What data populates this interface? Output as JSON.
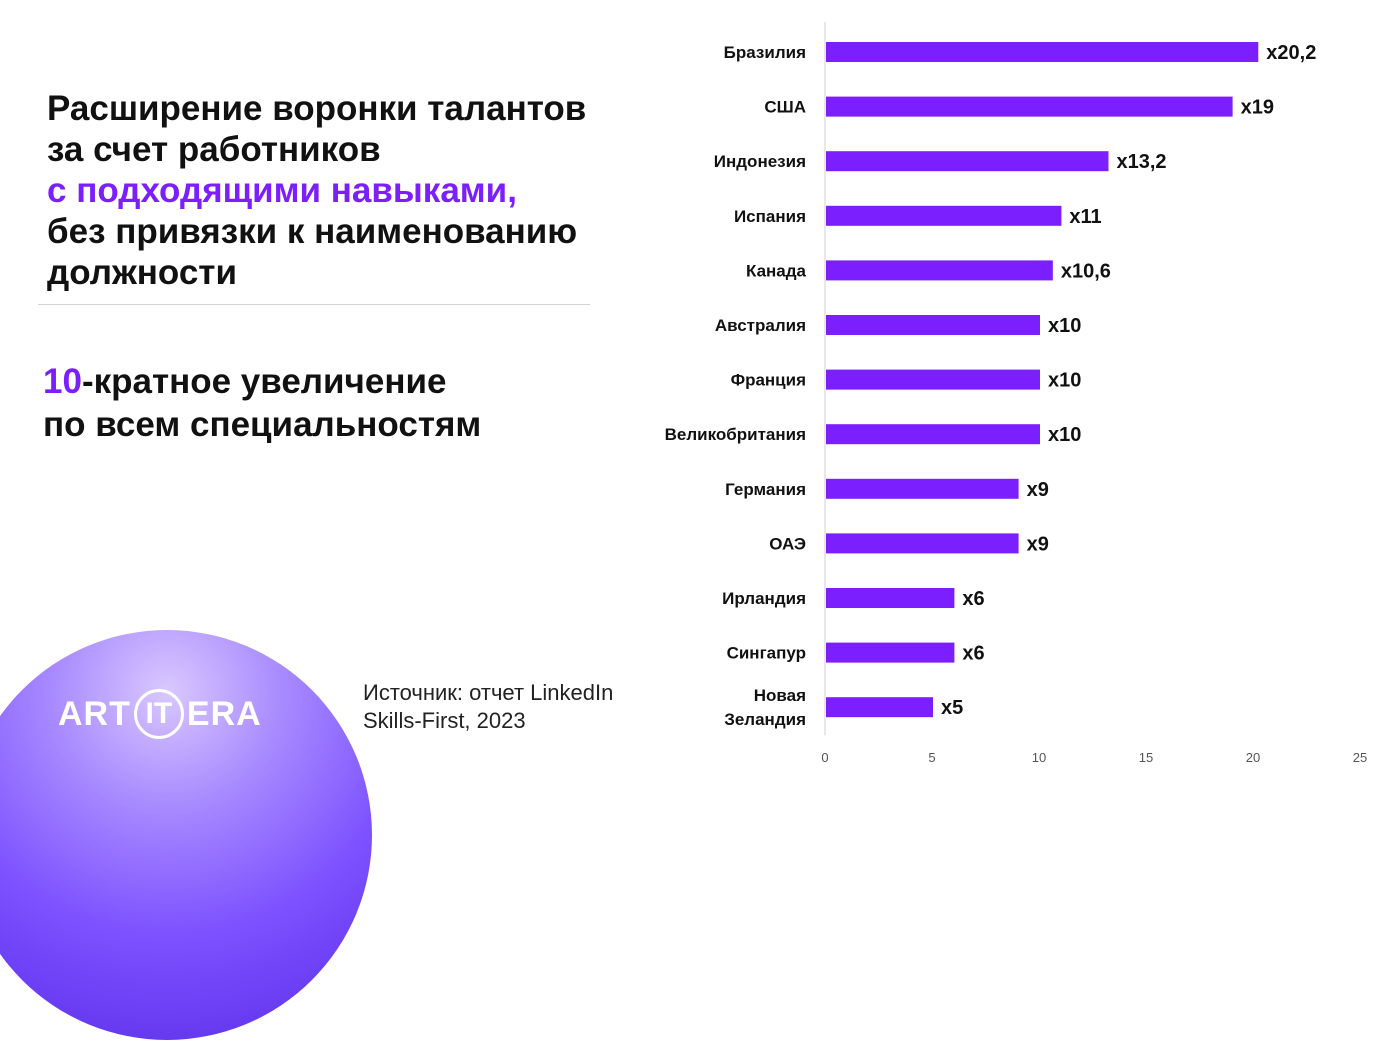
{
  "headline": {
    "line1": "Расширение воронки талантов",
    "line2": "за счет работников",
    "line3_accent": "с подходящими навыками,",
    "line4": "без привязки к наименованию",
    "line5": "должности"
  },
  "stat": {
    "number": "10",
    "line1_rest": "-кратное увеличение",
    "line2": "по всем специальностям"
  },
  "source": {
    "line1": "Источник: отчет LinkedIn",
    "line2": "Skills-First, 2023"
  },
  "logo": {
    "left": "ART",
    "middle": "IT",
    "right": "ERA"
  },
  "colors": {
    "accent": "#7b1fff",
    "bar": "#7b1fff",
    "text": "#111111",
    "logo_bg": "#7d52ff"
  },
  "chart_data": {
    "type": "bar",
    "orientation": "horizontal",
    "categories": [
      [
        "Бразилия"
      ],
      [
        "США"
      ],
      [
        "Индонезия"
      ],
      [
        "Испания"
      ],
      [
        "Канада"
      ],
      [
        "Австралия"
      ],
      [
        "Франция"
      ],
      [
        "Великобритания"
      ],
      [
        "Германия"
      ],
      [
        "ОАЭ"
      ],
      [
        "Ирландия"
      ],
      [
        "Сингапур"
      ],
      [
        "Новая",
        "Зеландия"
      ]
    ],
    "values": [
      20.2,
      19,
      13.2,
      11,
      10.6,
      10,
      10,
      10,
      9,
      9,
      6,
      6,
      5
    ],
    "data_labels": [
      "x20,2",
      "x19",
      "x13,2",
      "x11",
      "x10,6",
      "x10",
      "x10",
      "x10",
      "x9",
      "x9",
      "x6",
      "x6",
      "x5"
    ],
    "xlim": [
      0,
      25
    ],
    "x_ticks": [
      0,
      5,
      10,
      15,
      20,
      25
    ],
    "grid": false,
    "legend": "none"
  }
}
